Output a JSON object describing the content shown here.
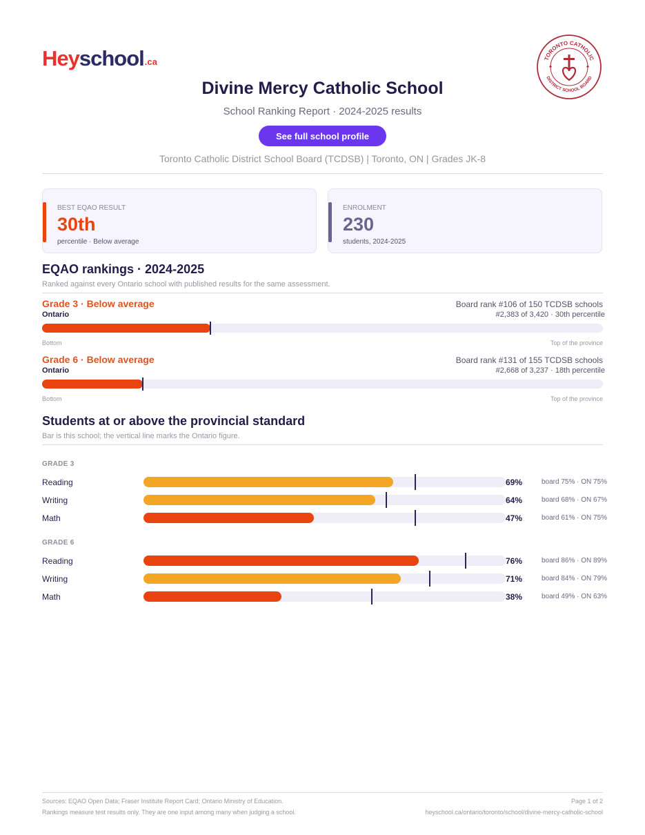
{
  "brand": {
    "logo_hey": "Hey",
    "logo_school": "school",
    "logo_tld": ".ca"
  },
  "seal": {
    "top_text": "TORONTO CATHOLIC",
    "bottom_text": "DISTRICT SCHOOL BOARD"
  },
  "header": {
    "title": "Divine Mercy Catholic School",
    "subtitle": "School Ranking Report  ·  2024-2025 results",
    "cta_label": "See full school profile",
    "meta": "Toronto Catholic District School Board (TCDSB)  |  Toronto, ON  |  Grades JK-8"
  },
  "stats": [
    {
      "label": "BEST EQAO RESULT",
      "value": "30th",
      "sub": "percentile  ·  Below average",
      "color": "#e9430f"
    },
    {
      "label": "ENROLMENT",
      "value": "230",
      "sub": "students, 2024-2025",
      "color": "#6a648f"
    }
  ],
  "rankings": {
    "heading": "EQAO rankings  ·  2024-2025",
    "note": "Ranked against every Ontario school with published results for the same assessment.",
    "scale_low": "Bottom",
    "scale_high": "Top of the province",
    "rows": [
      {
        "title": "Grade 3  ·  Below average",
        "region": "Ontario",
        "board_rank": "Board rank #106 of 150 TCDSB schools",
        "province_rank": "#2,383 of 3,420  ·  30th percentile",
        "percentile": 30
      },
      {
        "title": "Grade 6  ·  Below average",
        "region": "Ontario",
        "board_rank": "Board rank #131 of 155 TCDSB schools",
        "province_rank": "#2,668 of 3,237  ·  18th percentile",
        "percentile": 18
      }
    ]
  },
  "standards": {
    "heading": "Students at or above the provincial standard",
    "note": "Bar is this school; the vertical line marks the Ontario figure.",
    "groups": [
      {
        "label": "GRADE 3",
        "rows": [
          {
            "subject": "Reading",
            "school_label": "69%",
            "school": 69,
            "ontario": 75,
            "comparison": "board 75%  ·  ON 75%",
            "color": "#f2a623"
          },
          {
            "subject": "Writing",
            "school_label": "64%",
            "school": 64,
            "ontario": 67,
            "comparison": "board 68%  ·  ON 67%",
            "color": "#f2a623"
          },
          {
            "subject": "Math",
            "school_label": "47%",
            "school": 47,
            "ontario": 75,
            "comparison": "board 61%  ·  ON 75%",
            "color": "#e9430f"
          }
        ]
      },
      {
        "label": "GRADE 6",
        "rows": [
          {
            "subject": "Reading",
            "school_label": "76%",
            "school": 76,
            "ontario": 89,
            "comparison": "board 86%  ·  ON 89%",
            "color": "#e9430f"
          },
          {
            "subject": "Writing",
            "school_label": "71%",
            "school": 71,
            "ontario": 79,
            "comparison": "board 84%  ·  ON 79%",
            "color": "#f2a623"
          },
          {
            "subject": "Math",
            "school_label": "38%",
            "school": 38,
            "ontario": 63,
            "comparison": "board 49%  ·  ON 63%",
            "color": "#e9430f"
          }
        ]
      }
    ]
  },
  "footer": {
    "sources": "Sources: EQAO Open Data; Fraser Institute Report Card; Ontario Ministry of Education.",
    "disclaimer": "Rankings measure test results only. They are one input among many when judging a school.",
    "page": "Page 1 of 2",
    "url": "heyschool.ca/ontario/toronto/school/divine-mercy-catholic-school"
  }
}
